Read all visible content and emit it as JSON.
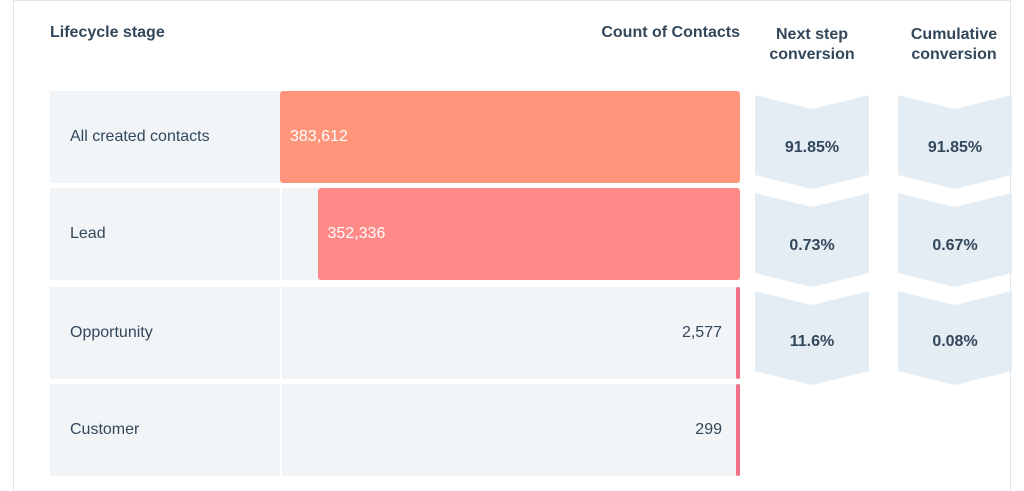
{
  "chart_data": {
    "type": "bar",
    "title": "",
    "headers": {
      "stage": "Lifecycle stage",
      "count": "Count of Contacts",
      "next_step": [
        "Next step",
        "conversion"
      ],
      "cumulative": [
        "Cumulative",
        "conversion"
      ]
    },
    "categories": [
      "All created contacts",
      "Lead",
      "Opportunity",
      "Customer"
    ],
    "values": [
      383612,
      352336,
      2577,
      299
    ],
    "value_labels": [
      "383,612",
      "352,336",
      "2,577",
      "299"
    ],
    "next_step_conversion": [
      "91.85%",
      "0.73%",
      "11.6%"
    ],
    "cumulative_conversion": [
      "91.85%",
      "0.67%",
      "0.08%"
    ],
    "colors": {
      "bar_0": "#ff967b",
      "bar_1": "#ff8a87",
      "bar_2": "#f2708a",
      "bar_3": "#f2708a",
      "conv_fill": "#e5edf4"
    }
  }
}
